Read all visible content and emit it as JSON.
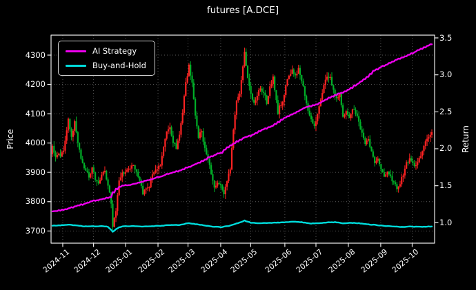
{
  "title": "futures [A.DCE]",
  "legend": {
    "items": [
      {
        "label": "AI Strategy",
        "color": "#ee00ee"
      },
      {
        "label": "Buy-and-Hold",
        "color": "#00dcdc"
      }
    ]
  },
  "chart_data": {
    "type": "candlestick+line",
    "title": "futures [A.DCE]",
    "grid": "dotted, on price ticks and month ticks",
    "background": "#000000",
    "left_axis": {
      "label": "Price",
      "ticks": [
        3700,
        3800,
        3900,
        4000,
        4100,
        4200,
        4300
      ],
      "range": [
        3672,
        4375
      ]
    },
    "right_axis": {
      "label": "Return",
      "ticks": [
        1.0,
        1.5,
        2.0,
        2.5,
        3.0,
        3.5
      ],
      "range": [
        0.72,
        3.54
      ]
    },
    "x_axis": {
      "days_total": 240,
      "ticks": [
        {
          "label": "2024-11",
          "day": 6.5
        },
        {
          "label": "2024-12",
          "day": 25.9
        },
        {
          "label": "2025-01",
          "day": 46.1
        },
        {
          "label": "2025-02",
          "day": 66.5
        },
        {
          "label": "2025-03",
          "day": 85.4
        },
        {
          "label": "2025-04",
          "day": 106.0
        },
        {
          "label": "2025-05",
          "day": 124.9
        },
        {
          "label": "2025-06",
          "day": 146.4
        },
        {
          "label": "2025-07",
          "day": 166.0
        },
        {
          "label": "2025-08",
          "day": 186.4
        },
        {
          "label": "2025-09",
          "day": 206.8
        },
        {
          "label": "2025-10",
          "day": 226.6
        }
      ]
    },
    "series": [
      {
        "name": "futures price",
        "style": "candlestick",
        "axis": "left",
        "up_color": "#ff2222",
        "down_color": "#00b028",
        "close_anchors": [
          [
            0,
            3990
          ],
          [
            2,
            3950
          ],
          [
            5,
            3960
          ],
          [
            7,
            3975
          ],
          [
            9,
            4040
          ],
          [
            10,
            4080
          ],
          [
            12,
            4020
          ],
          [
            14,
            4070
          ],
          [
            16,
            3995
          ],
          [
            18,
            3950
          ],
          [
            21,
            3900
          ],
          [
            23,
            3885
          ],
          [
            25,
            3910
          ],
          [
            27,
            3875
          ],
          [
            29,
            3860
          ],
          [
            31,
            3895
          ],
          [
            33,
            3905
          ],
          [
            35,
            3855
          ],
          [
            37,
            3795
          ],
          [
            38,
            3718
          ],
          [
            40,
            3770
          ],
          [
            42,
            3865
          ],
          [
            44,
            3905
          ],
          [
            46,
            3895
          ],
          [
            48,
            3910
          ],
          [
            51,
            3925
          ],
          [
            53,
            3905
          ],
          [
            55,
            3875
          ],
          [
            57,
            3830
          ],
          [
            59,
            3850
          ],
          [
            61,
            3855
          ],
          [
            63,
            3890
          ],
          [
            66,
            3915
          ],
          [
            68,
            3925
          ],
          [
            70,
            3985
          ],
          [
            72,
            4040
          ],
          [
            74,
            4060
          ],
          [
            76,
            4005
          ],
          [
            78,
            3985
          ],
          [
            80,
            4030
          ],
          [
            82,
            4110
          ],
          [
            84,
            4205
          ],
          [
            86,
            4265
          ],
          [
            88,
            4200
          ],
          [
            90,
            4095
          ],
          [
            92,
            4020
          ],
          [
            94,
            4040
          ],
          [
            96,
            3980
          ],
          [
            98,
            3950
          ],
          [
            100,
            3890
          ],
          [
            102,
            3845
          ],
          [
            104,
            3870
          ],
          [
            106,
            3858
          ],
          [
            108,
            3832
          ],
          [
            110,
            3875
          ],
          [
            112,
            3915
          ],
          [
            114,
            4040
          ],
          [
            116,
            4145
          ],
          [
            118,
            4175
          ],
          [
            120,
            4260
          ],
          [
            121,
            4310
          ],
          [
            123,
            4225
          ],
          [
            125,
            4165
          ],
          [
            127,
            4135
          ],
          [
            129,
            4160
          ],
          [
            131,
            4190
          ],
          [
            133,
            4170
          ],
          [
            135,
            4140
          ],
          [
            137,
            4190
          ],
          [
            139,
            4225
          ],
          [
            141,
            4150
          ],
          [
            142,
            4100
          ],
          [
            143,
            4125
          ],
          [
            145,
            4140
          ],
          [
            147,
            4195
          ],
          [
            149,
            4235
          ],
          [
            151,
            4250
          ],
          [
            153,
            4225
          ],
          [
            155,
            4255
          ],
          [
            157,
            4215
          ],
          [
            159,
            4165
          ],
          [
            161,
            4115
          ],
          [
            163,
            4080
          ],
          [
            165,
            4055
          ],
          [
            167,
            4105
          ],
          [
            169,
            4150
          ],
          [
            171,
            4200
          ],
          [
            173,
            4220
          ],
          [
            175,
            4230
          ],
          [
            177,
            4175
          ],
          [
            179,
            4150
          ],
          [
            181,
            4165
          ],
          [
            183,
            4090
          ],
          [
            185,
            4110
          ],
          [
            187,
            4085
          ],
          [
            189,
            4120
          ],
          [
            191,
            4100
          ],
          [
            193,
            4075
          ],
          [
            195,
            4030
          ],
          [
            197,
            3995
          ],
          [
            199,
            4010
          ],
          [
            201,
            3970
          ],
          [
            203,
            3935
          ],
          [
            205,
            3950
          ],
          [
            207,
            3915
          ],
          [
            209,
            3880
          ],
          [
            211,
            3908
          ],
          [
            213,
            3888
          ],
          [
            215,
            3865
          ],
          [
            217,
            3850
          ],
          [
            219,
            3865
          ],
          [
            221,
            3895
          ],
          [
            223,
            3928
          ],
          [
            225,
            3948
          ],
          [
            227,
            3935
          ],
          [
            229,
            3920
          ],
          [
            231,
            3945
          ],
          [
            233,
            3975
          ],
          [
            235,
            4000
          ],
          [
            237,
            4025
          ],
          [
            239,
            4032
          ]
        ],
        "extremes": {
          "high": [
            121,
            4335
          ],
          "low": [
            38,
            3710
          ]
        }
      },
      {
        "name": "AI Strategy",
        "style": "line",
        "axis": "right",
        "color": "#ee00ee",
        "points": [
          [
            0,
            1.15
          ],
          [
            7,
            1.18
          ],
          [
            14,
            1.22
          ],
          [
            19,
            1.25
          ],
          [
            26,
            1.3
          ],
          [
            33,
            1.33
          ],
          [
            36,
            1.35
          ],
          [
            39,
            1.44
          ],
          [
            42,
            1.49
          ],
          [
            47,
            1.51
          ],
          [
            53,
            1.53
          ],
          [
            59,
            1.57
          ],
          [
            67,
            1.62
          ],
          [
            74,
            1.67
          ],
          [
            80,
            1.71
          ],
          [
            86,
            1.76
          ],
          [
            93,
            1.82
          ],
          [
            98,
            1.88
          ],
          [
            106,
            1.95
          ],
          [
            110,
            2.02
          ],
          [
            116,
            2.1
          ],
          [
            121,
            2.16
          ],
          [
            125,
            2.18
          ],
          [
            131,
            2.25
          ],
          [
            139,
            2.32
          ],
          [
            146,
            2.42
          ],
          [
            152,
            2.48
          ],
          [
            158,
            2.55
          ],
          [
            166,
            2.6
          ],
          [
            171,
            2.66
          ],
          [
            175,
            2.7
          ],
          [
            182,
            2.76
          ],
          [
            186,
            2.8
          ],
          [
            192,
            2.88
          ],
          [
            198,
            2.97
          ],
          [
            201,
            3.04
          ],
          [
            206,
            3.1
          ],
          [
            212,
            3.16
          ],
          [
            218,
            3.22
          ],
          [
            223,
            3.26
          ],
          [
            228,
            3.31
          ],
          [
            233,
            3.36
          ],
          [
            236,
            3.39
          ],
          [
            239,
            3.43
          ]
        ]
      },
      {
        "name": "Buy-and-Hold",
        "style": "line",
        "axis": "right",
        "color": "#00dcdc",
        "points": [
          [
            0,
            0.958
          ],
          [
            5,
            0.965
          ],
          [
            10,
            0.975
          ],
          [
            15,
            0.962
          ],
          [
            20,
            0.95
          ],
          [
            26,
            0.95
          ],
          [
            31,
            0.955
          ],
          [
            35,
            0.945
          ],
          [
            37,
            0.905
          ],
          [
            38,
            0.875
          ],
          [
            40,
            0.91
          ],
          [
            42,
            0.94
          ],
          [
            45,
            0.95
          ],
          [
            50,
            0.955
          ],
          [
            56,
            0.945
          ],
          [
            62,
            0.952
          ],
          [
            68,
            0.958
          ],
          [
            74,
            0.968
          ],
          [
            80,
            0.97
          ],
          [
            86,
            0.995
          ],
          [
            90,
            0.98
          ],
          [
            95,
            0.965
          ],
          [
            101,
            0.945
          ],
          [
            106,
            0.94
          ],
          [
            111,
            0.955
          ],
          [
            116,
            0.988
          ],
          [
            121,
            1.028
          ],
          [
            125,
            1.0
          ],
          [
            130,
            0.992
          ],
          [
            136,
            0.998
          ],
          [
            141,
            1.0
          ],
          [
            147,
            1.006
          ],
          [
            152,
            1.014
          ],
          [
            157,
            1.006
          ],
          [
            162,
            0.988
          ],
          [
            168,
            0.994
          ],
          [
            173,
            1.004
          ],
          [
            178,
            1.006
          ],
          [
            183,
            0.992
          ],
          [
            188,
            0.998
          ],
          [
            193,
            0.992
          ],
          [
            198,
            0.978
          ],
          [
            203,
            0.97
          ],
          [
            208,
            0.958
          ],
          [
            213,
            0.952
          ],
          [
            217,
            0.945
          ],
          [
            221,
            0.942
          ],
          [
            225,
            0.948
          ],
          [
            229,
            0.944
          ],
          [
            233,
            0.942
          ],
          [
            236,
            0.945
          ],
          [
            239,
            0.95
          ]
        ]
      }
    ]
  }
}
